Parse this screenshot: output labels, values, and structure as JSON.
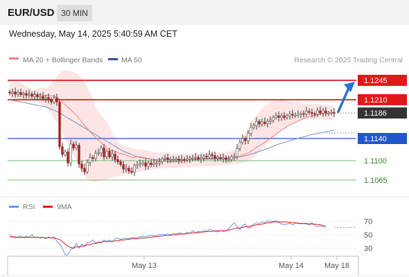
{
  "header": {
    "symbol": "EUR/USD",
    "timeframe": "30 MIN"
  },
  "timestamp": "Wednesday, May 14, 2025 5:40:59 AM CET",
  "legend": {
    "ma20_label": "MA 20 + Bollinger Bands",
    "ma50_label": "MA 50",
    "credit": "Research © 2025 Trading Central",
    "rsi_label": "RSI",
    "rsi_ma_label": "9MA"
  },
  "colors": {
    "resistance": "#e01818",
    "support_blue": "#2058c8",
    "support_green": "#8cc88c",
    "current_price": "#333333",
    "ma20": "#f08080",
    "bollinger_fill": "#fde0e0",
    "ma50": "#6f8fc2",
    "rsi": "#6f8fe0",
    "rsi_ma": "#e01818",
    "arrow": "#2e6fd0"
  },
  "chart_data": [
    {
      "type": "candlestick",
      "title": "",
      "ylim": [
        1.1035,
        1.1265
      ],
      "x_ticks": [
        "May 13",
        "May 14",
        "May 18"
      ],
      "price_levels": [
        {
          "value": 1.1245,
          "label": "1.1245",
          "kind": "resistance"
        },
        {
          "value": 1.121,
          "label": "1.1210",
          "kind": "resistance"
        },
        {
          "value": 1.1186,
          "label": "1.1186",
          "kind": "current"
        },
        {
          "value": 1.114,
          "label": "1.1140",
          "kind": "pivot"
        },
        {
          "value": 1.11,
          "label": "1.1100",
          "kind": "support"
        },
        {
          "value": 1.1065,
          "label": "1.1065",
          "kind": "support"
        }
      ],
      "close": [
        1.1222,
        1.1224,
        1.122,
        1.1223,
        1.1219,
        1.1221,
        1.1218,
        1.122,
        1.1216,
        1.1219,
        1.1215,
        1.1216,
        1.1212,
        1.1214,
        1.121,
        1.1206,
        1.1213,
        1.1206,
        1.1125,
        1.1111,
        1.1116,
        1.1096,
        1.113,
        1.1123,
        1.1128,
        1.1094,
        1.1086,
        1.108,
        1.1097,
        1.1106,
        1.1104,
        1.1113,
        1.1114,
        1.1123,
        1.1107,
        1.1117,
        1.1107,
        1.1112,
        1.1102,
        1.1098,
        1.1093,
        1.1085,
        1.1086,
        1.1081,
        1.1079,
        1.1091,
        1.1093,
        1.1094,
        1.1096,
        1.109,
        1.1096,
        1.1093,
        1.1095,
        1.1096,
        1.1098,
        1.1103,
        1.1105,
        1.1102,
        1.1102,
        1.1102,
        1.1103,
        1.1101,
        1.1102,
        1.1101,
        1.1103,
        1.1105,
        1.1105,
        1.1106,
        1.1103,
        1.1105,
        1.1108,
        1.1107,
        1.1111,
        1.1109,
        1.1104,
        1.1106,
        1.1104,
        1.1105,
        1.1102,
        1.1102,
        1.1107,
        1.1108,
        1.1122,
        1.1133,
        1.114,
        1.1136,
        1.1149,
        1.116,
        1.1163,
        1.1171,
        1.1166,
        1.117,
        1.1167,
        1.1171,
        1.1173,
        1.1178,
        1.1181,
        1.1178,
        1.1181,
        1.1178,
        1.1181,
        1.1184,
        1.1182,
        1.1182,
        1.1184,
        1.1185,
        1.1184,
        1.1189,
        1.1187,
        1.1185,
        1.1184,
        1.119,
        1.1186,
        1.119,
        1.1186,
        1.1186,
        1.1187,
        1.1186
      ],
      "ma20": [
        1.1222,
        1.1222,
        1.1221,
        1.1222,
        1.1221,
        1.1221,
        1.1221,
        1.122,
        1.122,
        1.122,
        1.1219,
        1.1219,
        1.1218,
        1.1218,
        1.1218,
        1.1217,
        1.1216,
        1.1215,
        1.1211,
        1.1206,
        1.1201,
        1.1196,
        1.1192,
        1.1187,
        1.1183,
        1.1176,
        1.117,
        1.1163,
        1.1158,
        1.1152,
        1.1147,
        1.1142,
        1.1137,
        1.1133,
        1.1128,
        1.1124,
        1.1119,
        1.1118,
        1.1117,
        1.1114,
        1.1113,
        1.1112,
        1.111,
        1.1108,
        1.1106,
        1.1106,
        1.1107,
        1.1107,
        1.1106,
        1.1105,
        1.1104,
        1.1103,
        1.1101,
        1.11,
        1.1099,
        1.1099,
        1.1099,
        1.1098,
        1.1098,
        1.1098,
        1.1098,
        1.1098,
        1.1099,
        1.11,
        1.1101,
        1.1102,
        1.1102,
        1.1103,
        1.1103,
        1.1103,
        1.1104,
        1.1104,
        1.1104,
        1.1105,
        1.1105,
        1.1105,
        1.1105,
        1.1105,
        1.1105,
        1.1105,
        1.1105,
        1.1105,
        1.1106,
        1.1108,
        1.111,
        1.1112,
        1.1114,
        1.1117,
        1.112,
        1.1124,
        1.1127,
        1.113,
        1.1133,
        1.1137,
        1.114,
        1.1144,
        1.1148,
        1.1151,
        1.1155,
        1.1158,
        1.1162,
        1.1165,
        1.1167,
        1.1169,
        1.1171,
        1.1174,
        1.1176,
        1.1178,
        1.118,
        1.1181,
        1.1182,
        1.1183,
        1.1184,
        1.1185,
        1.1185,
        1.1186,
        1.1186,
        1.1186
      ],
      "ma50": [
        1.121,
        1.1209,
        1.1208,
        1.1207,
        1.1206,
        1.1205,
        1.1204,
        1.1203,
        1.1202,
        1.1201,
        1.12,
        1.1199,
        1.1198,
        1.1197,
        1.1195,
        1.1193,
        1.1191,
        1.1189,
        1.1186,
        1.1183,
        1.118,
        1.1177,
        1.1174,
        1.1171,
        1.1168,
        1.1165,
        1.1162,
        1.1159,
        1.1156,
        1.1153,
        1.115,
        1.1147,
        1.1144,
        1.1141,
        1.1138,
        1.1135,
        1.1132,
        1.1129,
        1.1126,
        1.1123,
        1.112,
        1.1117,
        1.1115,
        1.1113,
        1.1111,
        1.1109,
        1.1107,
        1.1106,
        1.1105,
        1.1104,
        1.1103,
        1.1103,
        1.1102,
        1.1102,
        1.1102,
        1.1102,
        1.1102,
        1.1102,
        1.1102,
        1.1102,
        1.1102,
        1.1102,
        1.1102,
        1.1102,
        1.1102,
        1.1102,
        1.1102,
        1.1102,
        1.1102,
        1.1103,
        1.1103,
        1.1103,
        1.1103,
        1.1103,
        1.1103,
        1.1103,
        1.1103,
        1.1103,
        1.1104,
        1.1104,
        1.1104,
        1.1105,
        1.1106,
        1.1107,
        1.1108,
        1.1109,
        1.111,
        1.1112,
        1.1113,
        1.1115,
        1.1117,
        1.1118,
        1.112,
        1.1122,
        1.1124,
        1.1126,
        1.1128,
        1.113,
        1.1131,
        1.1133,
        1.1134,
        1.1136,
        1.1137,
        1.1139,
        1.114,
        1.1142,
        1.1143,
        1.1144,
        1.1146,
        1.1147,
        1.1148,
        1.1149,
        1.115,
        1.1151,
        1.1152,
        1.1153,
        1.1154,
        1.1155
      ],
      "bollinger_upper": [
        1.124,
        1.1241,
        1.1242,
        1.1242,
        1.124,
        1.1238,
        1.1235,
        1.1232,
        1.1228,
        1.1226,
        1.123,
        1.1232,
        1.1232,
        1.1232,
        1.1233,
        1.1238,
        1.1245,
        1.1252,
        1.1258,
        1.1262,
        1.1264,
        1.1263,
        1.1262,
        1.126,
        1.1258,
        1.1255,
        1.125,
        1.1242,
        1.1232,
        1.1222,
        1.1212,
        1.1198,
        1.1188,
        1.1182,
        1.1176,
        1.117,
        1.116,
        1.115,
        1.1142,
        1.1135,
        1.113,
        1.1127,
        1.1126,
        1.1124,
        1.1123,
        1.1122,
        1.1121,
        1.112,
        1.112,
        1.1119,
        1.1118,
        1.1117,
        1.1116,
        1.1115,
        1.1114,
        1.1114,
        1.1114,
        1.1114,
        1.1113,
        1.1112,
        1.1112,
        1.1112,
        1.1112,
        1.1112,
        1.1112,
        1.1113,
        1.1113,
        1.1113,
        1.1113,
        1.1113,
        1.1114,
        1.1114,
        1.1115,
        1.1115,
        1.1115,
        1.1115,
        1.1115,
        1.1116,
        1.1116,
        1.1117,
        1.1118,
        1.112,
        1.1124,
        1.1132,
        1.1142,
        1.115,
        1.116,
        1.117,
        1.1176,
        1.1182,
        1.1188,
        1.1194,
        1.1198,
        1.1202,
        1.1205,
        1.1207,
        1.1208,
        1.1209,
        1.1209,
        1.1209,
        1.1208,
        1.1207,
        1.1206,
        1.1205,
        1.1205,
        1.1204,
        1.1204,
        1.1203,
        1.1203,
        1.1203,
        1.1202,
        1.1202,
        1.1202,
        1.1201,
        1.1201,
        1.12,
        1.1199,
        1.1199
      ],
      "bollinger_lower": [
        1.1205,
        1.1205,
        1.1206,
        1.1206,
        1.1208,
        1.1208,
        1.1208,
        1.1208,
        1.121,
        1.121,
        1.1206,
        1.1202,
        1.12,
        1.1198,
        1.1192,
        1.1184,
        1.1176,
        1.117,
        1.1164,
        1.115,
        1.114,
        1.113,
        1.1118,
        1.111,
        1.11,
        1.109,
        1.108,
        1.1072,
        1.1066,
        1.1063,
        1.1062,
        1.1062,
        1.1062,
        1.1064,
        1.1065,
        1.1066,
        1.1068,
        1.107,
        1.1071,
        1.1072,
        1.1073,
        1.1074,
        1.1075,
        1.1076,
        1.1077,
        1.1078,
        1.1079,
        1.108,
        1.1081,
        1.1082,
        1.1083,
        1.1084,
        1.1085,
        1.1085,
        1.1086,
        1.1086,
        1.1086,
        1.1087,
        1.1087,
        1.1087,
        1.1087,
        1.1087,
        1.1088,
        1.1088,
        1.1088,
        1.1088,
        1.1089,
        1.1089,
        1.1089,
        1.109,
        1.109,
        1.109,
        1.109,
        1.109,
        1.1091,
        1.1091,
        1.1091,
        1.1092,
        1.1092,
        1.1092,
        1.1093,
        1.1093,
        1.1094,
        1.1095,
        1.1096,
        1.1097,
        1.1099,
        1.1102,
        1.1106,
        1.1111,
        1.1116,
        1.1121,
        1.1126,
        1.1131,
        1.1136,
        1.1141,
        1.1146,
        1.115,
        1.1154,
        1.1158,
        1.1162,
        1.1165,
        1.1168,
        1.117,
        1.1172,
        1.1173,
        1.1174,
        1.1174,
        1.1175,
        1.1175,
        1.1175,
        1.1175,
        1.1175,
        1.1175,
        1.1175,
        1.1175,
        1.1175,
        1.1175
      ]
    },
    {
      "type": "line",
      "title": "",
      "ylim": [
        20,
        80
      ],
      "y_ticks": [
        70,
        50,
        30
      ],
      "series": [
        {
          "name": "RSI",
          "values": [
            50,
            47,
            45,
            47,
            48,
            46,
            48,
            46,
            50,
            46,
            47,
            45,
            46,
            44,
            47,
            45,
            47,
            40,
            36,
            29,
            20,
            20,
            28,
            30,
            37,
            30,
            36,
            33,
            38,
            39,
            42,
            38,
            40,
            38,
            42,
            40,
            42,
            40,
            44,
            45,
            43,
            44,
            45,
            44,
            46,
            45,
            46,
            47,
            48,
            47,
            48,
            49,
            48,
            49,
            50,
            51,
            50,
            51,
            50,
            52,
            51,
            53,
            52,
            51,
            54,
            52,
            56,
            53,
            55,
            54,
            56,
            55,
            58,
            57,
            55,
            54,
            56,
            55,
            56,
            59,
            64,
            68,
            62,
            58,
            64,
            66,
            60,
            61,
            66,
            68,
            67,
            69,
            68,
            71,
            70,
            70,
            71,
            69,
            66,
            65,
            66,
            67,
            65,
            67,
            68,
            66,
            67,
            66,
            65,
            68,
            64,
            62,
            63,
            62,
            61
          ]
        },
        {
          "name": "9MA",
          "values": [
            47,
            47,
            47,
            46,
            46,
            46,
            46,
            46,
            46,
            46,
            46,
            46,
            46,
            45,
            46,
            45,
            45,
            44,
            43,
            40,
            36,
            33,
            31,
            30,
            32,
            32,
            33,
            33,
            35,
            35,
            37,
            37,
            38,
            39,
            40,
            40,
            40,
            40,
            41,
            41,
            42,
            42,
            43,
            43,
            44,
            44,
            44,
            45,
            45,
            45,
            46,
            46,
            47,
            47,
            48,
            48,
            49,
            49,
            49,
            50,
            50,
            51,
            51,
            51,
            52,
            52,
            53,
            53,
            53,
            54,
            54,
            55,
            55,
            55,
            56,
            56,
            56,
            56,
            56,
            57,
            58,
            59,
            60,
            60,
            61,
            62,
            62,
            63,
            64,
            65,
            65,
            66,
            67,
            68,
            68,
            69,
            69,
            69,
            69,
            69,
            69,
            68,
            68,
            68,
            67,
            67,
            67,
            67,
            66,
            66,
            66,
            65,
            65,
            64,
            63
          ]
        }
      ]
    }
  ]
}
